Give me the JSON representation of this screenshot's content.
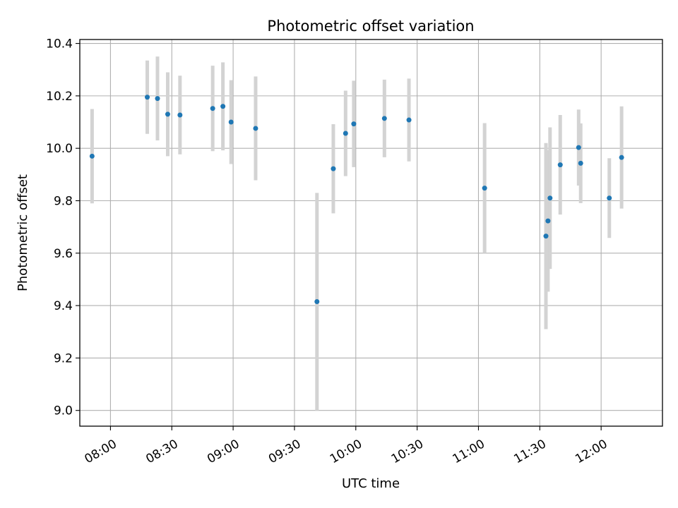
{
  "chart_data": {
    "type": "scatter",
    "title": "Photometric offset variation",
    "xlabel": "UTC time",
    "ylabel": "Photometric offset",
    "x_axis": "time",
    "xlim": [
      "07:45",
      "12:30"
    ],
    "ylim": [
      8.94,
      10.415
    ],
    "grid": true,
    "x_ticks": [
      "08:00",
      "08:30",
      "09:00",
      "09:30",
      "10:00",
      "10:30",
      "11:00",
      "11:30",
      "12:00"
    ],
    "y_ticks": [
      "9.0",
      "9.2",
      "9.4",
      "9.6",
      "9.8",
      "10.0",
      "10.2",
      "10.4"
    ],
    "colors": {
      "points": "#1f77b4",
      "error_bars": "#d3d3d3",
      "grid": "#b0b0b0"
    },
    "points": [
      {
        "x": "07:51",
        "y": 9.97,
        "err": 0.18
      },
      {
        "x": "08:18",
        "y": 10.195,
        "err": 0.14
      },
      {
        "x": "08:23",
        "y": 10.19,
        "err": 0.16
      },
      {
        "x": "08:28",
        "y": 10.13,
        "err": 0.16
      },
      {
        "x": "08:34",
        "y": 10.127,
        "err": 0.15
      },
      {
        "x": "08:50",
        "y": 10.152,
        "err": 0.163
      },
      {
        "x": "08:55",
        "y": 10.16,
        "err": 0.168
      },
      {
        "x": "08:59",
        "y": 10.1,
        "err": 0.16
      },
      {
        "x": "09:11",
        "y": 10.076,
        "err": 0.198
      },
      {
        "x": "09:41",
        "y": 9.415,
        "err": 0.415
      },
      {
        "x": "09:49",
        "y": 9.922,
        "err": 0.17
      },
      {
        "x": "09:55",
        "y": 10.057,
        "err": 0.163
      },
      {
        "x": "09:59",
        "y": 10.093,
        "err": 0.165
      },
      {
        "x": "10:14",
        "y": 10.114,
        "err": 0.148
      },
      {
        "x": "10:26",
        "y": 10.108,
        "err": 0.158
      },
      {
        "x": "11:03",
        "y": 9.848,
        "err": 0.248
      },
      {
        "x": "11:33",
        "y": 9.665,
        "err": 0.355
      },
      {
        "x": "11:34",
        "y": 9.723,
        "err": 0.27
      },
      {
        "x": "11:35",
        "y": 9.81,
        "err": 0.27
      },
      {
        "x": "11:40",
        "y": 9.937,
        "err": 0.19
      },
      {
        "x": "11:49",
        "y": 10.003,
        "err": 0.145
      },
      {
        "x": "11:50",
        "y": 9.943,
        "err": 0.152
      },
      {
        "x": "12:04",
        "y": 9.81,
        "err": 0.152
      },
      {
        "x": "12:10",
        "y": 9.965,
        "err": 0.195
      }
    ]
  }
}
